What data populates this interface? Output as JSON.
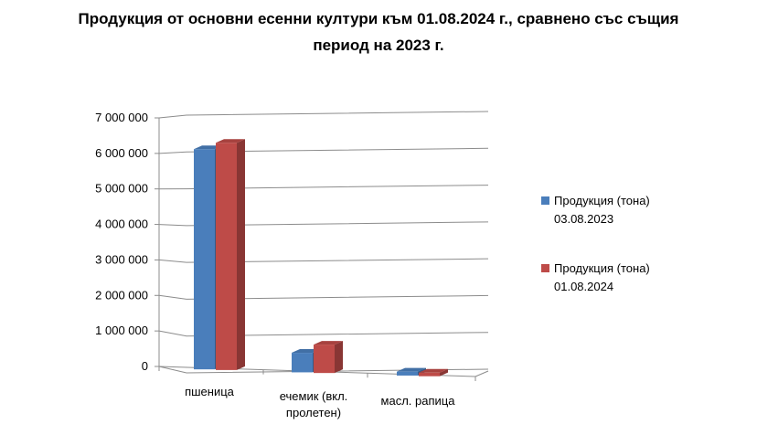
{
  "title": {
    "line1": "Продукция от основни есенни култури към 01.08.2024 г., сравнено със същия",
    "line2": "период на 2023 г."
  },
  "legend": [
    {
      "line1": "Продукция (тона)",
      "line2": "03.08.2023",
      "color": "#4a7ebb"
    },
    {
      "line1": "Продукция (тона)",
      "line2": "01.08.2024",
      "color": "#be4b48"
    }
  ],
  "categories": [
    {
      "line1": "пшеница",
      "line2": ""
    },
    {
      "line1": "ечемик (вкл.",
      "line2": "пролетен)"
    },
    {
      "line1": "масл. рапица",
      "line2": ""
    }
  ],
  "chart_data": {
    "type": "bar",
    "title": "Продукция от основни есенни култури към 01.08.2024 г., сравнено със същия период на 2023 г.",
    "categories": [
      "пшеница",
      "ечемик (вкл. пролетен)",
      "масл. рапица"
    ],
    "series": [
      {
        "name": "Продукция (тона) 03.08.2023",
        "values": [
          6200000,
          550000,
          110000
        ],
        "color": "#4a7ebb"
      },
      {
        "name": "Продукция (тона) 01.08.2024",
        "values": [
          6400000,
          800000,
          100000
        ],
        "color": "#be4b48"
      }
    ],
    "yticks": [
      "0",
      "1 000 000",
      "2 000 000",
      "3 000 000",
      "4 000 000",
      "5 000 000",
      "6 000 000",
      "7 000 000"
    ],
    "ylim": [
      0,
      7000000
    ],
    "grid": true,
    "legend_position": "right",
    "style": "3d-clustered-column"
  }
}
